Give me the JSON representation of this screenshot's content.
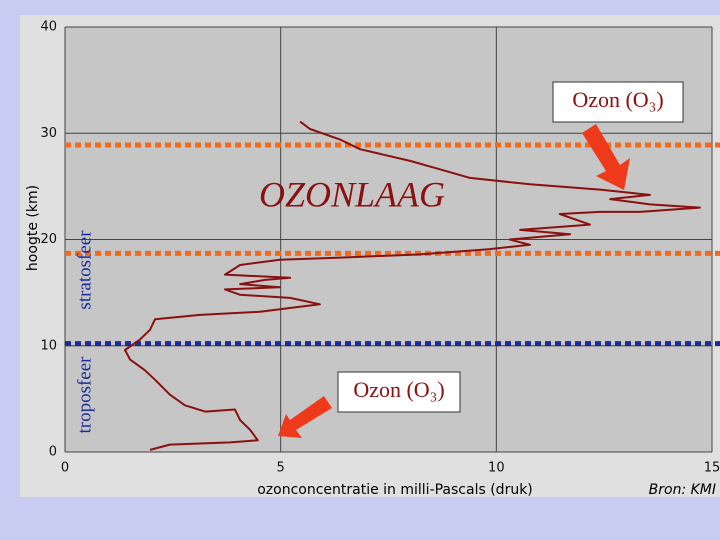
{
  "chart_data": {
    "type": "line",
    "color": "#8b1010",
    "x_label": "ozonconcentratie in milli-Pascals (druk)",
    "y_label": "hoogte (km)",
    "source": "Bron: KMI",
    "xlim": [
      0,
      15
    ],
    "xticks": [
      0,
      5,
      10,
      15
    ],
    "ylim": [
      0,
      40
    ],
    "yticks": [
      0,
      10,
      20,
      30,
      40
    ],
    "grid": true,
    "x": [
      1.97,
      2.43,
      3.83,
      4.47,
      4.29,
      4.06,
      3.94,
      3.25,
      2.78,
      2.43,
      2.09,
      1.85,
      1.51,
      1.39,
      1.74,
      1.97,
      2.09,
      3.13,
      4.52,
      5.91,
      5.22,
      4.06,
      3.71,
      4.98,
      4.06,
      4.64,
      5.22,
      3.71,
      4.06,
      4.98,
      6.38,
      8.23,
      9.85,
      10.78,
      10.31,
      11.71,
      10.55,
      12.17,
      11.47,
      12.4,
      13.33,
      14.72,
      13.56,
      12.64,
      13.56,
      12.4,
      10.78,
      9.39,
      8.7,
      8.0,
      6.84,
      6.38,
      5.68,
      5.45
    ],
    "values": [
      0.2,
      0.7,
      0.9,
      1.1,
      2.1,
      3.0,
      4.0,
      3.8,
      4.4,
      5.4,
      6.8,
      7.7,
      8.7,
      9.6,
      10.6,
      11.5,
      12.5,
      12.9,
      13.2,
      13.9,
      14.5,
      14.8,
      15.3,
      15.5,
      15.8,
      16.2,
      16.4,
      16.7,
      17.6,
      18.1,
      18.3,
      18.6,
      19.1,
      19.5,
      20.0,
      20.5,
      20.9,
      21.4,
      22.4,
      22.6,
      22.6,
      23.0,
      23.3,
      23.8,
      24.2,
      24.7,
      25.2,
      25.8,
      26.6,
      27.4,
      28.5,
      29.4,
      30.4,
      31.1
    ],
    "reference_lines": [
      {
        "value": 28.9,
        "color": "#f26b1d"
      },
      {
        "value": 18.7,
        "color": "#f26b1d"
      },
      {
        "value": 10.2,
        "color": "#1a2a9a"
      }
    ],
    "annotations": {
      "layer": "OZONLAAG",
      "stratosphere": "stratosfeer",
      "troposphere": "troposfeer",
      "ozone_top": "Ozon (O₃)",
      "ozone_bottom": "Ozon (O₃)"
    }
  }
}
